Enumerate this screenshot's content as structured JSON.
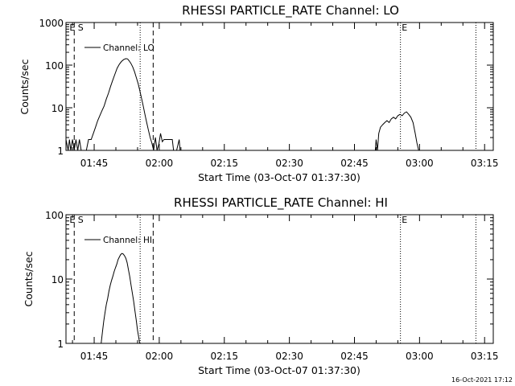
{
  "footer": {
    "timestamp": "16-Oct-2021 17:12"
  },
  "x_axis": {
    "label": "Start Time (03-Oct-07 01:37:30)",
    "range_minutes": [
      98.5,
      197.0
    ],
    "ticks": [
      {
        "t": 105,
        "label": "01:45"
      },
      {
        "t": 120,
        "label": "02:00"
      },
      {
        "t": 135,
        "label": "02:15"
      },
      {
        "t": 150,
        "label": "02:30"
      },
      {
        "t": 165,
        "label": "02:45"
      },
      {
        "t": 180,
        "label": "03:00"
      },
      {
        "t": 195,
        "label": "03:15"
      }
    ]
  },
  "chart_data": [
    {
      "type": "line",
      "title": "RHESSI PARTICLE_RATE Channel: LO",
      "ylabel": "Counts/sec",
      "xlabel": "Start Time (03-Oct-07 01:37:30)",
      "y_scale": "log",
      "ylim": [
        1,
        1000
      ],
      "y_ticks": [
        {
          "v": 1,
          "label": "1"
        },
        {
          "v": 10,
          "label": "10"
        },
        {
          "v": 100,
          "label": "100"
        },
        {
          "v": 1000,
          "label": "1000"
        }
      ],
      "legend": {
        "label": "Channel: LO",
        "placement": "top-left"
      },
      "markers": [
        {
          "t": 100.4,
          "style": "dashed"
        },
        {
          "t": 115.6,
          "style": "dotted"
        },
        {
          "t": 118.6,
          "style": "dashed"
        },
        {
          "t": 175.6,
          "style": "dotted"
        },
        {
          "t": 193.0,
          "style": "dotted"
        }
      ],
      "marker_labels": [
        {
          "t": 99.3,
          "text": "E S"
        },
        {
          "t": 175.9,
          "text": "E"
        }
      ],
      "series": [
        {
          "name": "",
          "points": [
            [
              98.5,
              1.8
            ],
            [
              99.0,
              1.0
            ],
            [
              99.3,
              1.8
            ],
            [
              99.6,
              1.0
            ],
            [
              100.0,
              1.8
            ],
            [
              100.4,
              1.0
            ],
            [
              100.8,
              1.8
            ],
            [
              101.2,
              1.0
            ],
            [
              101.6,
              1.8
            ],
            [
              102.0,
              1.0
            ],
            [
              102.5,
              1.0
            ],
            [
              103.2,
              1.0
            ],
            [
              103.7,
              1.8
            ],
            [
              104.3,
              1.8
            ],
            [
              104.8,
              2.5
            ],
            [
              105.3,
              3.5
            ],
            [
              105.8,
              5.0
            ],
            [
              106.3,
              6.5
            ],
            [
              106.8,
              8.5
            ],
            [
              107.3,
              11
            ],
            [
              107.8,
              16
            ],
            [
              108.3,
              22
            ],
            [
              108.8,
              32
            ],
            [
              109.3,
              45
            ],
            [
              109.8,
              62
            ],
            [
              110.3,
              85
            ],
            [
              110.8,
              105
            ],
            [
              111.3,
              122
            ],
            [
              111.8,
              135
            ],
            [
              112.3,
              142
            ],
            [
              112.7,
              140
            ],
            [
              113.1,
              125
            ],
            [
              113.5,
              108
            ],
            [
              113.9,
              90
            ],
            [
              114.3,
              70
            ],
            [
              114.7,
              52
            ],
            [
              115.1,
              38
            ],
            [
              115.5,
              26
            ],
            [
              115.9,
              17
            ],
            [
              116.3,
              11
            ],
            [
              116.7,
              7
            ],
            [
              117.1,
              4.5
            ],
            [
              117.5,
              3
            ],
            [
              117.9,
              2
            ],
            [
              118.3,
              1.5
            ],
            [
              118.7,
              1.0
            ],
            [
              119.1,
              2.0
            ],
            [
              119.5,
              1.0
            ],
            [
              119.9,
              1.4
            ],
            [
              120.3,
              2.5
            ],
            [
              120.7,
              1.6
            ],
            [
              121.1,
              1.8
            ],
            [
              121.5,
              1.8
            ],
            [
              122.0,
              1.8
            ],
            [
              122.5,
              1.8
            ],
            [
              123.0,
              1.8
            ],
            [
              123.3,
              1.0
            ],
            [
              124.0,
              1.0
            ],
            [
              124.6,
              1.8
            ],
            [
              124.8,
              1.0
            ],
            [
              130,
              1.0
            ],
            [
              140,
              1.0
            ],
            [
              150,
              1.0
            ],
            [
              160,
              1.0
            ],
            [
              169.8,
              1.0
            ],
            [
              170.0,
              1.8
            ],
            [
              170.3,
              1.0
            ],
            [
              170.6,
              2.5
            ],
            [
              171.0,
              3.5
            ],
            [
              171.5,
              4.0
            ],
            [
              172.0,
              4.5
            ],
            [
              172.5,
              5.0
            ],
            [
              173.0,
              4.5
            ],
            [
              173.5,
              5.5
            ],
            [
              174.0,
              6.0
            ],
            [
              174.5,
              5.5
            ],
            [
              175.0,
              6.5
            ],
            [
              175.5,
              7.0
            ],
            [
              176.0,
              6.5
            ],
            [
              176.5,
              7.5
            ],
            [
              177.0,
              8.0
            ],
            [
              177.5,
              7.0
            ],
            [
              178.0,
              6.0
            ],
            [
              178.5,
              4.5
            ],
            [
              179.0,
              2.5
            ],
            [
              179.4,
              1.5
            ],
            [
              179.8,
              1.0
            ],
            [
              180.5,
              1.0
            ],
            [
              197.0,
              1.0
            ]
          ]
        }
      ]
    },
    {
      "type": "line",
      "title": "RHESSI PARTICLE_RATE Channel: HI",
      "ylabel": "Counts/sec",
      "xlabel": "Start Time (03-Oct-07 01:37:30)",
      "y_scale": "log",
      "ylim": [
        1,
        100
      ],
      "y_ticks": [
        {
          "v": 1,
          "label": "1"
        },
        {
          "v": 10,
          "label": "10"
        },
        {
          "v": 100,
          "label": "100"
        }
      ],
      "legend": {
        "label": "Channel: HI",
        "placement": "top-left"
      },
      "markers": [
        {
          "t": 100.4,
          "style": "dashed"
        },
        {
          "t": 115.6,
          "style": "dotted"
        },
        {
          "t": 118.6,
          "style": "dashed"
        },
        {
          "t": 175.6,
          "style": "dotted"
        },
        {
          "t": 193.0,
          "style": "dotted"
        }
      ],
      "marker_labels": [
        {
          "t": 99.3,
          "text": "E S"
        },
        {
          "t": 175.9,
          "text": "E"
        }
      ],
      "series": [
        {
          "name": "",
          "points": [
            [
              106.6,
              1.0
            ],
            [
              106.9,
              1.5
            ],
            [
              107.2,
              2.2
            ],
            [
              107.5,
              3.0
            ],
            [
              107.8,
              4.0
            ],
            [
              108.1,
              5.0
            ],
            [
              108.4,
              6.5
            ],
            [
              108.7,
              8.0
            ],
            [
              109.0,
              9.5
            ],
            [
              109.3,
              11
            ],
            [
              109.6,
              13
            ],
            [
              109.9,
              15
            ],
            [
              110.2,
              17
            ],
            [
              110.5,
              20
            ],
            [
              110.8,
              22
            ],
            [
              111.1,
              24
            ],
            [
              111.4,
              25
            ],
            [
              111.7,
              24.5
            ],
            [
              112.0,
              23
            ],
            [
              112.3,
              21
            ],
            [
              112.6,
              18
            ],
            [
              112.9,
              14
            ],
            [
              113.2,
              11
            ],
            [
              113.5,
              8
            ],
            [
              113.8,
              6
            ],
            [
              114.1,
              4.5
            ],
            [
              114.4,
              3.2
            ],
            [
              114.7,
              2.3
            ],
            [
              115.0,
              1.6
            ],
            [
              115.3,
              1.2
            ],
            [
              115.5,
              1.0
            ]
          ]
        }
      ]
    }
  ]
}
